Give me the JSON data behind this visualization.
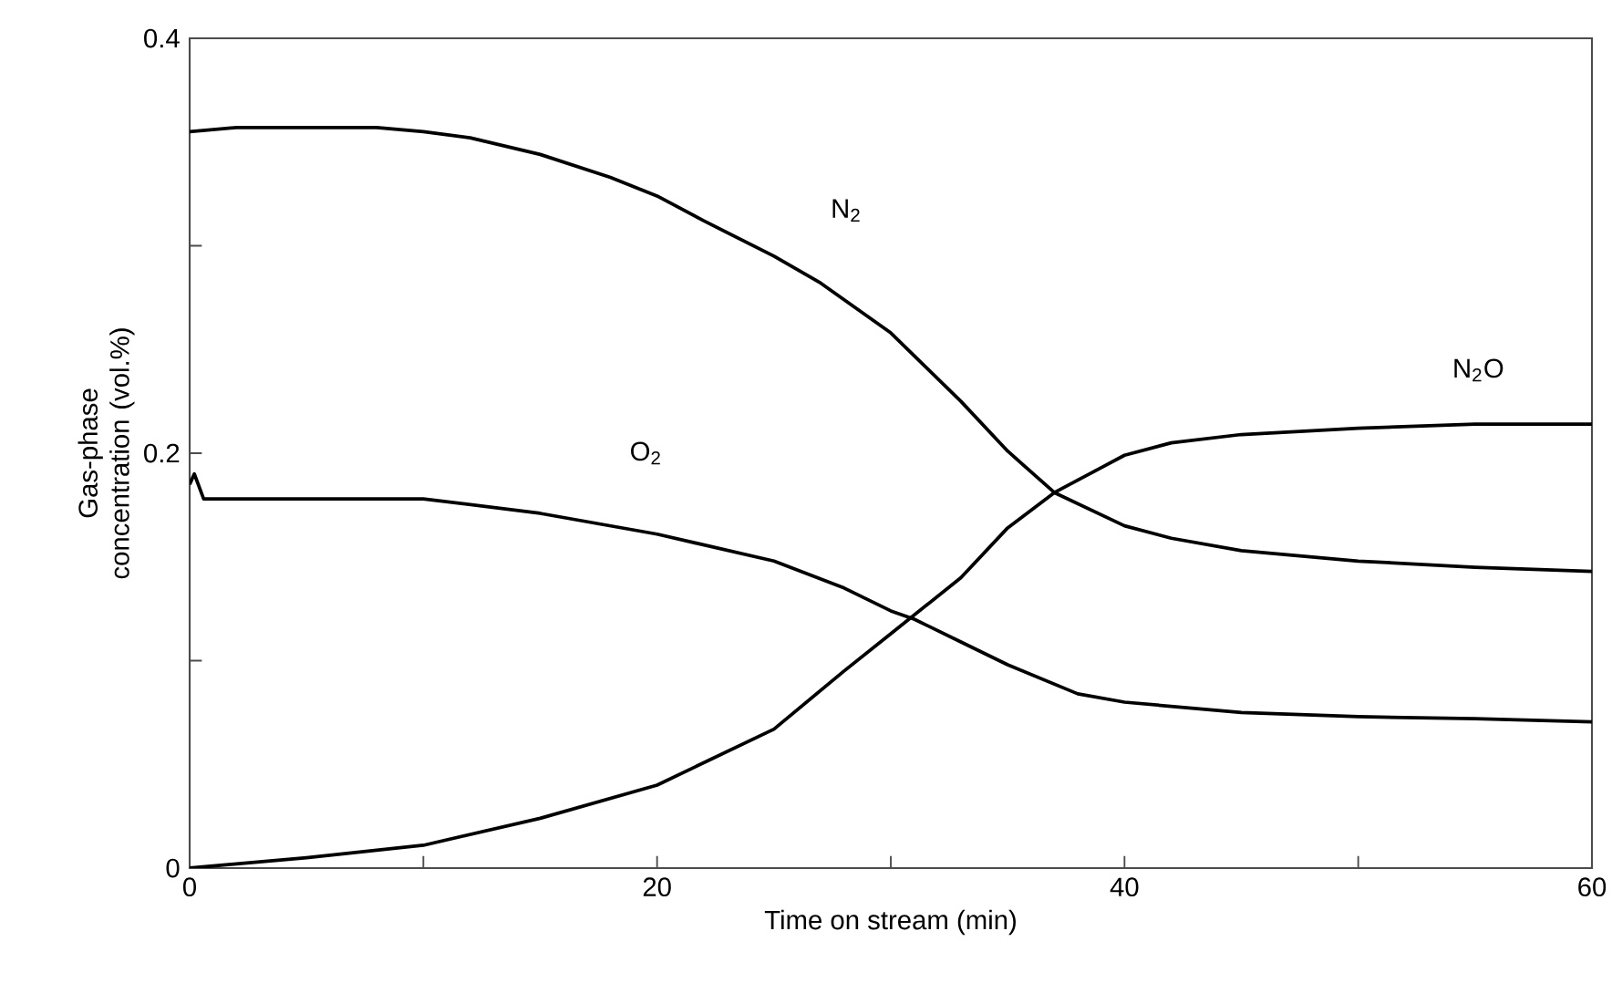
{
  "chart_data": {
    "type": "line",
    "xlabel": "Time on stream (min)",
    "ylabel": "Gas-phase concentration (vol.%)",
    "xlim": [
      0,
      60
    ],
    "xticks": [
      0,
      {
        "value": 10,
        "label": null
      },
      20,
      {
        "value": 30,
        "label": null
      },
      40,
      {
        "value": 50,
        "label": null
      },
      60
    ],
    "ylim": [
      0,
      0.4
    ],
    "yticks": [
      0,
      {
        "value": 0.1,
        "label": null
      },
      0.2,
      {
        "value": 0.3,
        "label": null
      },
      0.4
    ],
    "grid": false,
    "legend": false,
    "marker": "none",
    "line_style": "solid",
    "series": [
      {
        "name": "N$_{2}$",
        "color": "#000000",
        "x": [
          0,
          2,
          5,
          8,
          10,
          12,
          15,
          18,
          20,
          22,
          25,
          27,
          30,
          33,
          35,
          37,
          40,
          42,
          45,
          50,
          55,
          60
        ],
        "values": [
          0.355,
          0.357,
          0.357,
          0.357,
          0.355,
          0.352,
          0.344,
          0.333,
          0.324,
          0.312,
          0.295,
          0.282,
          0.258,
          0.225,
          0.201,
          0.181,
          0.165,
          0.159,
          0.153,
          0.148,
          0.145,
          0.143
        ]
      },
      {
        "name": "O$_{2}$",
        "color": "#000000",
        "x": [
          0,
          0.2,
          0.6,
          2,
          5,
          10,
          15,
          20,
          25,
          28,
          30,
          31,
          33,
          35,
          38,
          40,
          45,
          50,
          55,
          60
        ],
        "values": [
          0.185,
          0.19,
          0.178,
          0.178,
          0.178,
          0.178,
          0.171,
          0.161,
          0.148,
          0.135,
          0.124,
          0.12,
          0.109,
          0.098,
          0.084,
          0.08,
          0.075,
          0.073,
          0.072,
          0.0705
        ]
      },
      {
        "name": "N$_{2}$O",
        "color": "#000000",
        "x": [
          0,
          2,
          5,
          10,
          15,
          20,
          25,
          28,
          30,
          33,
          35,
          37,
          40,
          42,
          45,
          50,
          55,
          60
        ],
        "values": [
          0,
          0.002,
          0.005,
          0.011,
          0.024,
          0.04,
          0.067,
          0.095,
          0.113,
          0.14,
          0.164,
          0.181,
          0.199,
          0.205,
          0.209,
          0.212,
          0.214,
          0.214
        ]
      }
    ]
  }
}
